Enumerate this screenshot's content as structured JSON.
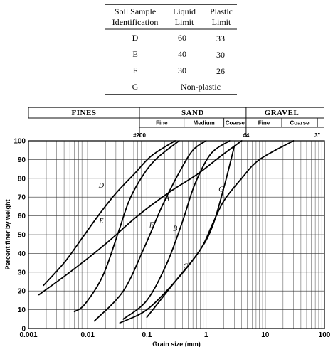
{
  "table": {
    "headers": [
      "Soil Sample\nIdentification",
      "Liquid\nLimit",
      "Plastic\nLimit"
    ],
    "rows": [
      {
        "id": "D",
        "ll": "60",
        "pl": "33"
      },
      {
        "id": "E",
        "ll": "40",
        "pl": "30"
      },
      {
        "id": "F",
        "ll": "30",
        "pl": "26"
      },
      {
        "id": "G",
        "nonplastic": "Non-plastic"
      }
    ]
  },
  "bands": {
    "main": [
      {
        "label": "FINES",
        "from": 0.001,
        "to": 0.075
      },
      {
        "label": "SAND",
        "from": 0.075,
        "to": 4.75
      },
      {
        "label": "GRAVEL",
        "from": 4.75,
        "to": 76
      }
    ],
    "sub": [
      {
        "label": "Fine",
        "from": 0.075,
        "to": 0.425
      },
      {
        "label": "Medium",
        "from": 0.425,
        "to": 2.0
      },
      {
        "label": "Coarse",
        "from": 2.0,
        "to": 4.75
      },
      {
        "label": "Fine",
        "from": 4.75,
        "to": 19
      },
      {
        "label": "Coarse",
        "from": 19,
        "to": 76
      }
    ],
    "sieves": [
      {
        "label": "#200",
        "x": 0.075
      },
      {
        "label": "#4",
        "x": 4.75
      },
      {
        "label": "3\"",
        "x": 76
      }
    ]
  },
  "chart_data": {
    "type": "line",
    "xscale": "log",
    "xlim": [
      0.001,
      100
    ],
    "ylim": [
      0,
      100
    ],
    "xlabel": "Grain size (mm)",
    "ylabel": "Percent finer by weight",
    "xticks": [
      0.001,
      0.01,
      0.1,
      1,
      10,
      100
    ],
    "xtick_labels": [
      "0.001",
      "0.01",
      "0.1",
      "1",
      "10",
      "100"
    ],
    "yticks": [
      0,
      10,
      20,
      30,
      40,
      50,
      60,
      70,
      80,
      90,
      100
    ],
    "grid": true,
    "series": [
      {
        "name": "A",
        "x": [
          0.0015,
          0.005,
          0.02,
          0.07,
          0.25,
          0.7,
          1.8,
          4.0
        ],
        "y": [
          18,
          30,
          45,
          60,
          73,
          82,
          92,
          100
        ]
      },
      {
        "name": "B",
        "x": [
          0.04,
          0.1,
          0.22,
          0.4,
          0.65,
          1.2,
          2.5
        ],
        "y": [
          5,
          15,
          35,
          57,
          77,
          93,
          100
        ]
      },
      {
        "name": "C",
        "x": [
          0.035,
          0.1,
          0.3,
          0.8,
          1.3,
          2.0,
          3.0
        ],
        "y": [
          3,
          10,
          25,
          42,
          55,
          75,
          97
        ]
      },
      {
        "name": "D",
        "x": [
          0.0018,
          0.004,
          0.008,
          0.015,
          0.03,
          0.06,
          0.12,
          0.3
        ],
        "y": [
          23,
          35,
          48,
          60,
          72,
          82,
          92,
          100
        ]
      },
      {
        "name": "E",
        "x": [
          0.006,
          0.009,
          0.018,
          0.032,
          0.05,
          0.08,
          0.14,
          0.35
        ],
        "y": [
          9,
          13,
          28,
          50,
          68,
          80,
          90,
          100
        ]
      },
      {
        "name": "F",
        "x": [
          0.013,
          0.04,
          0.09,
          0.18,
          0.35,
          0.6,
          1.0
        ],
        "y": [
          4,
          20,
          43,
          65,
          83,
          95,
          100
        ]
      },
      {
        "name": "G",
        "x": [
          0.1,
          0.3,
          0.8,
          1.3,
          2.0,
          4.0,
          8.0,
          30.0
        ],
        "y": [
          6,
          25,
          42,
          56,
          68,
          80,
          90,
          100
        ]
      }
    ],
    "labels": [
      {
        "text": "A",
        "x": 0.22,
        "y": 68
      },
      {
        "text": "B",
        "x": 0.3,
        "y": 52
      },
      {
        "text": "C",
        "x": 0.45,
        "y": 32
      },
      {
        "text": "D",
        "x": 0.017,
        "y": 75
      },
      {
        "text": "E",
        "x": 0.017,
        "y": 56
      },
      {
        "text": "F",
        "x": 0.12,
        "y": 54
      },
      {
        "text": "G",
        "x": 1.8,
        "y": 73
      }
    ]
  }
}
